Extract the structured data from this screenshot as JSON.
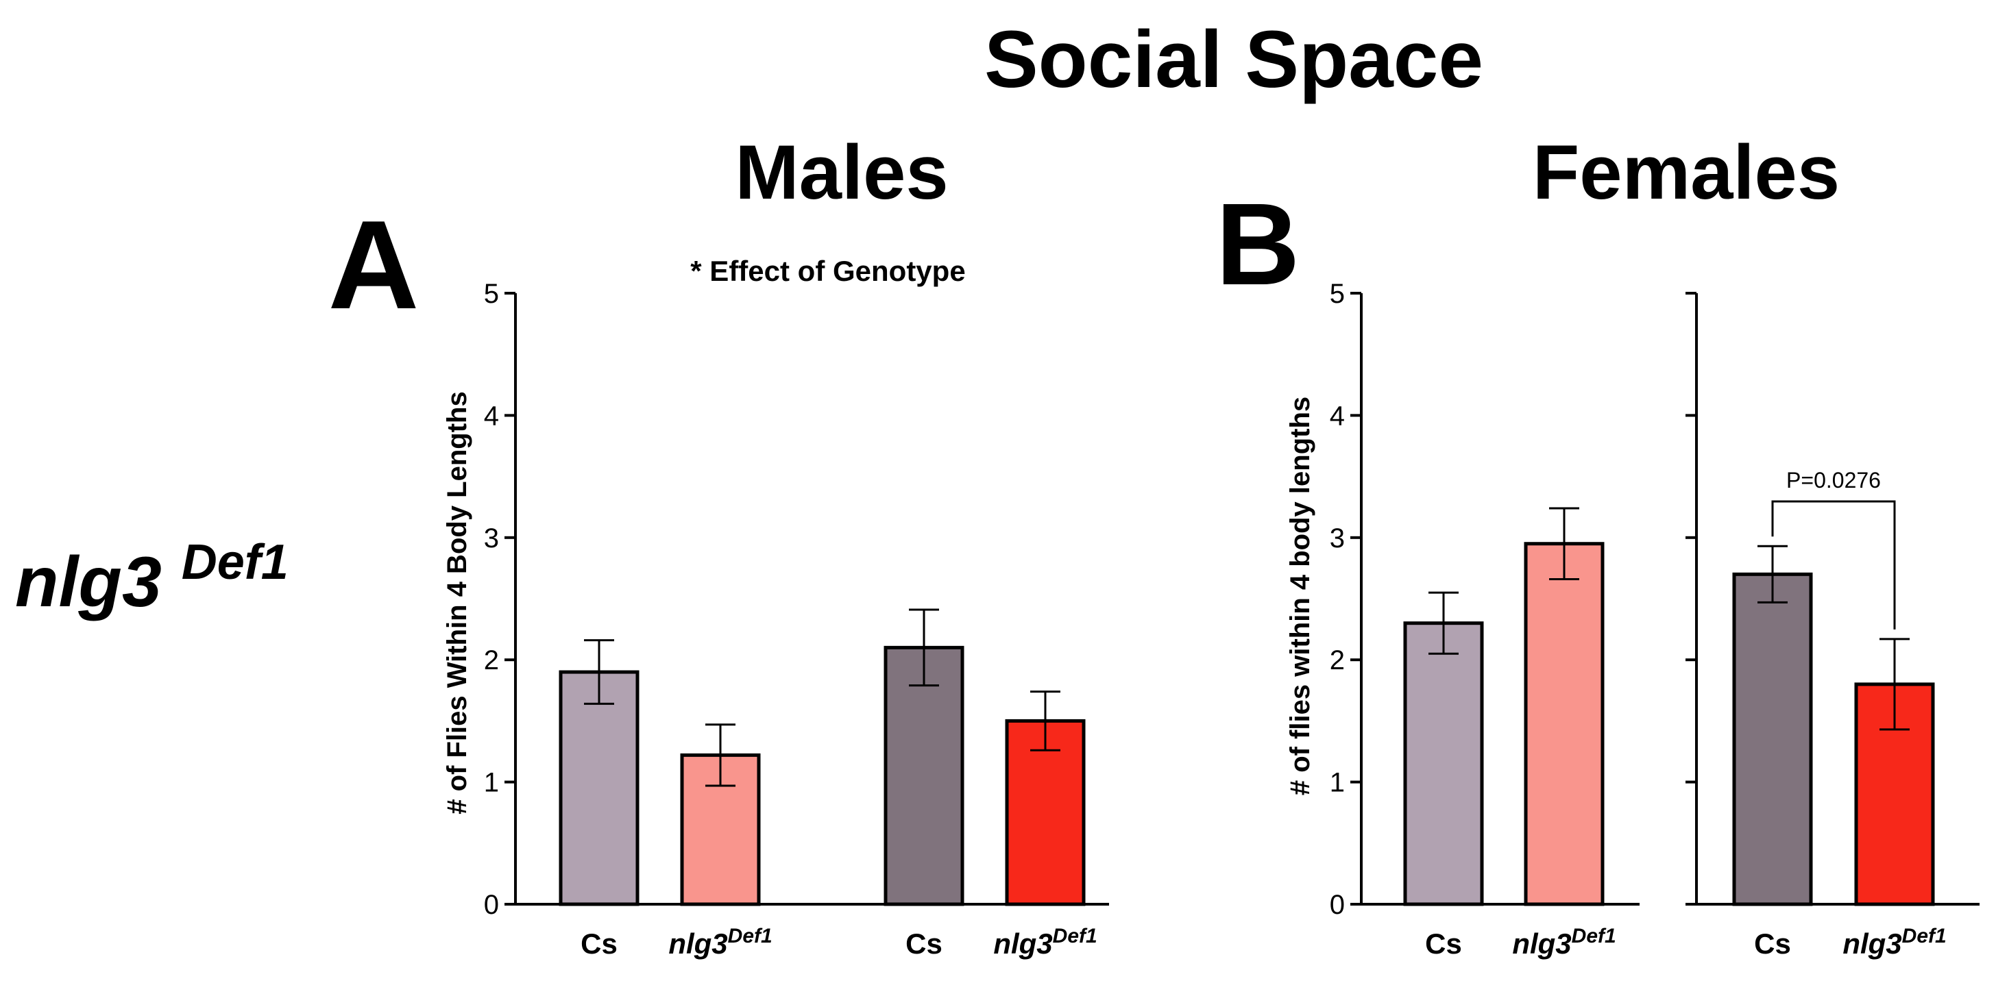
{
  "figure": {
    "title": "Social Space",
    "genotype_label": "nlg3",
    "genotype_superscript": "Def1"
  },
  "chart_data": [
    {
      "panel": "A",
      "type": "bar",
      "title": "Males",
      "annotation": "* Effect of Genotype",
      "ylabel": "# of Flies Within 4  Body  Lengths",
      "ylim": [
        0,
        5
      ],
      "yticks": [
        "0",
        "1",
        "2",
        "3",
        "4",
        "5"
      ],
      "groups": [
        {
          "bars": [
            {
              "label": "Cs",
              "italic": false,
              "sup": "",
              "value": 1.9,
              "err": 0.26,
              "color": "#B1A2B1"
            },
            {
              "label": "nlg3",
              "italic": true,
              "sup": "Def1",
              "value": 1.22,
              "err": 0.25,
              "color": "#F9958D"
            }
          ]
        },
        {
          "bars": [
            {
              "label": "Cs",
              "italic": false,
              "sup": "",
              "value": 2.1,
              "err": 0.31,
              "color": "#80737D"
            },
            {
              "label": "nlg3",
              "italic": true,
              "sup": "Def1",
              "value": 1.5,
              "err": 0.24,
              "color": "#F7281A"
            }
          ]
        }
      ]
    },
    {
      "panel": "B",
      "type": "bar",
      "title": "Females",
      "ylabel": "# of flies within 4 body lengths",
      "ylim": [
        0,
        5
      ],
      "yticks": [
        "0",
        "1",
        "2",
        "3",
        "4",
        "5"
      ],
      "groups": [
        {
          "bars": [
            {
              "label": "Cs",
              "italic": false,
              "sup": "",
              "value": 2.3,
              "err": 0.25,
              "color": "#B1A2B1"
            },
            {
              "label": "nlg3",
              "italic": true,
              "sup": "Def1",
              "value": 2.95,
              "err": 0.29,
              "color": "#F9958D"
            }
          ]
        },
        {
          "bars": [
            {
              "label": "Cs",
              "italic": false,
              "sup": "",
              "value": 2.7,
              "err": 0.23,
              "color": "#80737D"
            },
            {
              "label": "nlg3",
              "italic": true,
              "sup": "Def1",
              "value": 1.8,
              "err": 0.37,
              "color": "#F7281A"
            }
          ]
        }
      ],
      "significance": {
        "text": "P=0.0276",
        "group": 1,
        "between": [
          0,
          1
        ]
      }
    }
  ]
}
